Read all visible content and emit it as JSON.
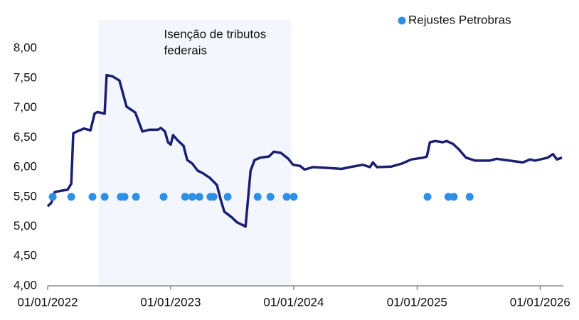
{
  "chart_data": {
    "type": "line",
    "legend": "top-right",
    "annotation": {
      "text": [
        "Isenção de tributos",
        "federais"
      ],
      "span": [
        "2022-06-01",
        "2023-12-24"
      ],
      "color": "#f3f7fd"
    },
    "xlim": [
      "2022-01-01",
      "2026-03-11"
    ],
    "xticks": [
      {
        "value": "2022-01-01",
        "label": "01/01/2022"
      },
      {
        "value": "2023-01-01",
        "label": "01/01/2023"
      },
      {
        "value": "2024-01-01",
        "label": "01/01/2024"
      },
      {
        "value": "2025-01-01",
        "label": "01/01/2025"
      },
      {
        "value": "2026-01-01",
        "label": "01/01/2026"
      }
    ],
    "ylim": [
      4,
      8.48
    ],
    "yticks": [
      {
        "value": 4,
        "label": "4,00"
      },
      {
        "value": 4.5,
        "label": "4,50"
      },
      {
        "value": 5,
        "label": "5,00"
      },
      {
        "value": 5.5,
        "label": "5,50"
      },
      {
        "value": 6,
        "label": "6,00"
      },
      {
        "value": 6.5,
        "label": "6,50"
      },
      {
        "value": 7,
        "label": "7,00"
      },
      {
        "value": 7.5,
        "label": "7,50"
      },
      {
        "value": 8,
        "label": "8,00"
      }
    ],
    "series": [
      {
        "type": "line",
        "color": "#1b1f72",
        "x": [
          "2022-01-01",
          "2022-01-12",
          "2022-01-22",
          "2022-02-08",
          "2022-03-01",
          "2022-03-12",
          "2022-03-18",
          "2022-03-29",
          "2022-04-19",
          "2022-05-08",
          "2022-05-20",
          "2022-05-29",
          "2022-06-19",
          "2022-06-25",
          "2022-07-12",
          "2022-08-02",
          "2022-08-23",
          "2022-09-18",
          "2022-10-09",
          "2022-10-30",
          "2022-11-24",
          "2022-12-03",
          "2022-12-15",
          "2022-12-24",
          "2023-01-01",
          "2023-01-08",
          "2023-01-22",
          "2023-02-08",
          "2023-02-19",
          "2023-03-06",
          "2023-03-22",
          "2023-04-06",
          "2023-04-27",
          "2023-05-18",
          "2023-05-29",
          "2023-06-09",
          "2023-06-30",
          "2023-07-17",
          "2023-08-11",
          "2023-08-26",
          "2023-09-07",
          "2023-09-24",
          "2023-10-20",
          "2023-11-03",
          "2023-11-24",
          "2023-12-16",
          "2023-12-30",
          "2024-01-20",
          "2024-02-02",
          "2024-02-27",
          "2024-05-01",
          "2024-05-22",
          "2024-06-16",
          "2024-07-24",
          "2024-08-14",
          "2024-08-23",
          "2024-09-04",
          "2024-10-17",
          "2024-11-17",
          "2024-12-15",
          "2025-01-20",
          "2025-01-30",
          "2025-02-08",
          "2025-02-24",
          "2025-03-18",
          "2025-03-30",
          "2025-04-18",
          "2025-05-05",
          "2025-05-26",
          "2025-06-23",
          "2025-08-04",
          "2025-08-25",
          "2025-09-19",
          "2025-11-11",
          "2025-12-02",
          "2025-12-17",
          "2026-01-24",
          "2026-02-08",
          "2026-02-20",
          "2026-03-07"
        ],
        "values": [
          5.34,
          5.4,
          5.58,
          5.6,
          5.62,
          5.72,
          6.57,
          6.6,
          6.65,
          6.62,
          6.9,
          6.93,
          6.9,
          7.55,
          7.53,
          7.46,
          7.02,
          6.92,
          6.6,
          6.63,
          6.63,
          6.66,
          6.6,
          6.42,
          6.38,
          6.54,
          6.45,
          6.36,
          6.12,
          6.06,
          5.94,
          5.9,
          5.82,
          5.7,
          5.46,
          5.25,
          5.16,
          5.07,
          5.0,
          5.94,
          6.12,
          6.16,
          6.18,
          6.26,
          6.24,
          6.14,
          6.04,
          6.02,
          5.96,
          6.0,
          5.98,
          5.97,
          6.0,
          6.04,
          6.0,
          6.08,
          6.0,
          6.01,
          6.06,
          6.13,
          6.16,
          6.18,
          6.42,
          6.44,
          6.42,
          6.44,
          6.39,
          6.3,
          6.16,
          6.11,
          6.11,
          6.14,
          6.12,
          6.08,
          6.13,
          6.11,
          6.16,
          6.22,
          6.13,
          6.16
        ]
      },
      {
        "type": "scatter",
        "name": "Rejustes Petrobras",
        "color": "#2d8fe8",
        "x": [
          "2022-01-16",
          "2022-03-12",
          "2022-05-14",
          "2022-06-19",
          "2022-08-06",
          "2022-08-17",
          "2022-09-20",
          "2022-12-11",
          "2023-02-13",
          "2023-03-06",
          "2023-03-27",
          "2023-04-29",
          "2023-05-08",
          "2023-06-19",
          "2023-09-16",
          "2023-10-24",
          "2023-12-11",
          "2024-01-01",
          "2025-02-01",
          "2025-04-04",
          "2025-04-20",
          "2025-06-06"
        ],
        "values": [
          5.5,
          5.5,
          5.5,
          5.5,
          5.5,
          5.5,
          5.5,
          5.5,
          5.5,
          5.5,
          5.5,
          5.5,
          5.5,
          5.5,
          5.5,
          5.5,
          5.5,
          5.5,
          5.5,
          5.5,
          5.5,
          5.5
        ]
      }
    ]
  }
}
